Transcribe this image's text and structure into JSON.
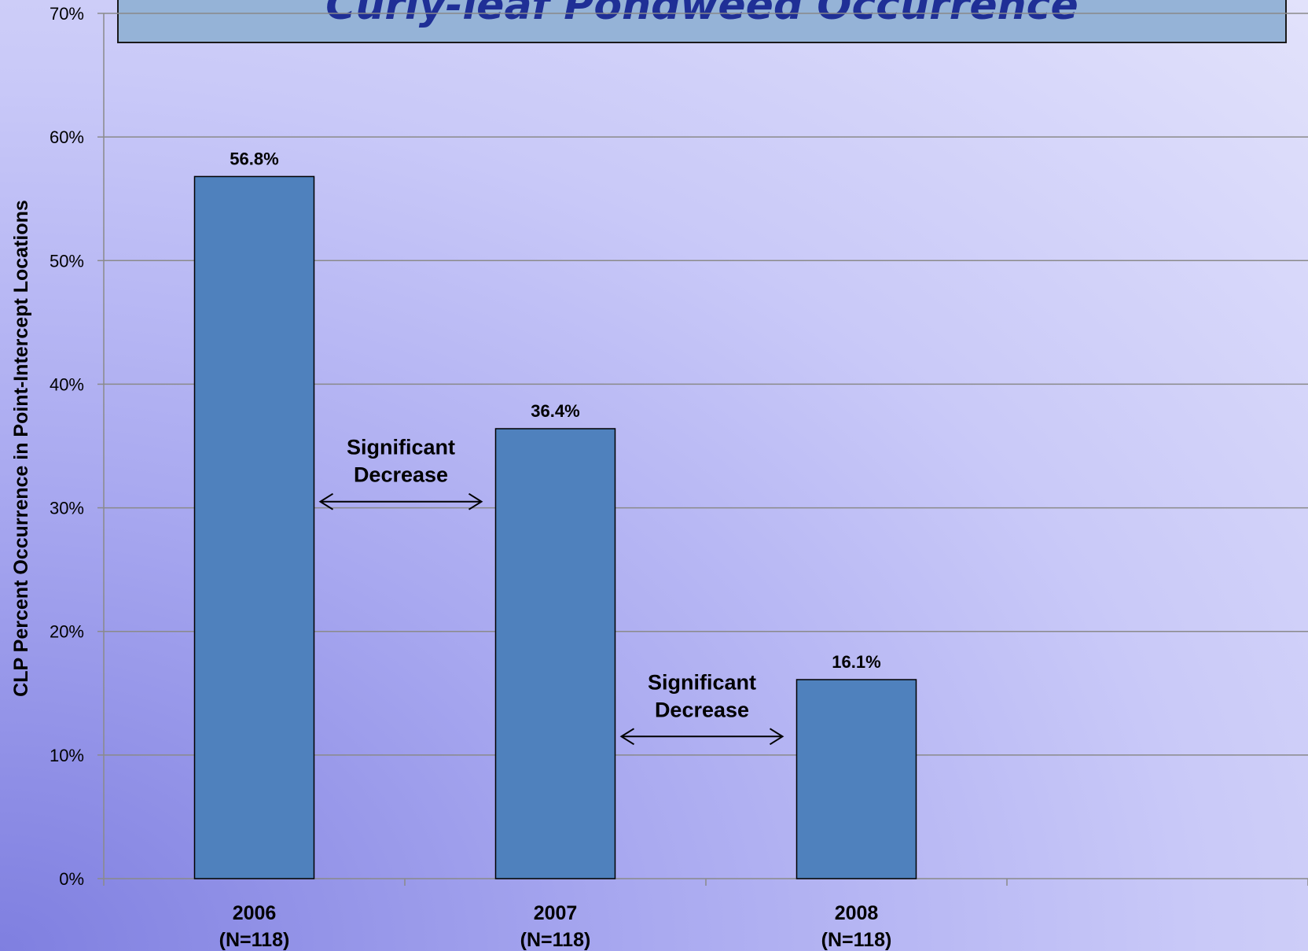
{
  "chart_data": {
    "type": "bar",
    "title": "Curly-leaf Pondweed Occurrence",
    "ylabel": "CLP Percent Occurrence in Point-Intercept Locations",
    "xlabel": "",
    "ylim": [
      0,
      70
    ],
    "yticks": [
      "0%",
      "10%",
      "20%",
      "30%",
      "40%",
      "50%",
      "60%",
      "70%"
    ],
    "categories": [
      "2006\n(N=118)",
      "2007\n(N=118)",
      "2008\n(N=118)"
    ],
    "category_lines": [
      [
        "2006",
        "(N=118)"
      ],
      [
        "2007",
        "(N=118)"
      ],
      [
        "2008",
        "(N=118)"
      ]
    ],
    "values": [
      56.8,
      36.4,
      16.1
    ],
    "data_labels": [
      "56.8%",
      "36.4%",
      "16.1%"
    ],
    "grid": true,
    "bar_color": "#4f81bd",
    "annotations": [
      {
        "lines": [
          "Significant",
          "Decrease"
        ],
        "between": [
          0,
          1
        ],
        "y": 30.5
      },
      {
        "lines": [
          "Significant",
          "Decrease"
        ],
        "between": [
          1,
          2
        ],
        "y": 11.5
      }
    ]
  }
}
